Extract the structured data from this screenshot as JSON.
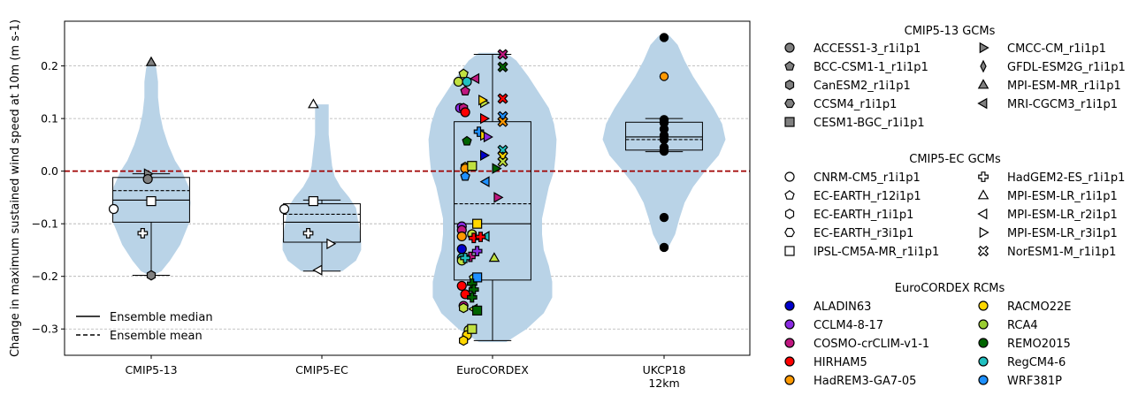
{
  "chart_data": {
    "type": "violin",
    "ylabel": "Change in maximum sustained wind speed at 10m (m s-1)",
    "ylim": [
      -0.35,
      0.285
    ],
    "yticks": [
      "0.2",
      "0.1",
      "0.0",
      "−0.1",
      "−0.2",
      "−0.3"
    ],
    "ytick_values": [
      0.2,
      0.1,
      0.0,
      -0.1,
      -0.2,
      -0.3
    ],
    "grid": "horizontal dashed",
    "reference_line": 0.0,
    "categories": [
      "CMIP5-13",
      "CMIP5-EC",
      "EuroCORDEX",
      "UKCP18 12km"
    ],
    "category_lines": [
      [
        "CMIP5-13"
      ],
      [
        "CMIP5-EC"
      ],
      [
        "EuroCORDEX"
      ],
      [
        "UKCP18",
        "12km"
      ]
    ],
    "box_stats": [
      {
        "whisker_low": -0.198,
        "q1": -0.097,
        "median": -0.055,
        "mean": -0.037,
        "q3": -0.012,
        "whisker_high": -0.005
      },
      {
        "whisker_low": -0.19,
        "q1": -0.135,
        "median": -0.097,
        "mean": -0.082,
        "q3": -0.062,
        "whisker_high": -0.055
      },
      {
        "whisker_low": -0.322,
        "q1": -0.207,
        "median": -0.1,
        "mean": -0.062,
        "q3": 0.094,
        "whisker_high": 0.222
      },
      {
        "whisker_low": 0.037,
        "q1": 0.04,
        "median": 0.065,
        "mean": 0.06,
        "q3": 0.093,
        "whisker_high": 0.1
      }
    ],
    "violins": [
      [
        [
          -0.2,
          0.0
        ],
        [
          -0.19,
          0.12
        ],
        [
          -0.17,
          0.22
        ],
        [
          -0.14,
          0.34
        ],
        [
          -0.1,
          0.44
        ],
        [
          -0.06,
          0.46
        ],
        [
          -0.03,
          0.44
        ],
        [
          0.0,
          0.36
        ],
        [
          0.02,
          0.28
        ],
        [
          0.05,
          0.2
        ],
        [
          0.08,
          0.14
        ],
        [
          0.11,
          0.1
        ],
        [
          0.14,
          0.08
        ],
        [
          0.17,
          0.08
        ],
        [
          0.195,
          0.06
        ],
        [
          0.21,
          0.03
        ]
      ],
      [
        [
          -0.19,
          0.24
        ],
        [
          -0.17,
          0.4
        ],
        [
          -0.15,
          0.46
        ],
        [
          -0.13,
          0.46
        ],
        [
          -0.11,
          0.44
        ],
        [
          -0.09,
          0.42
        ],
        [
          -0.07,
          0.4
        ],
        [
          -0.05,
          0.32
        ],
        [
          -0.03,
          0.22
        ],
        [
          -0.01,
          0.15
        ],
        [
          0.01,
          0.12
        ],
        [
          0.04,
          0.1
        ],
        [
          0.07,
          0.08
        ],
        [
          0.1,
          0.08
        ],
        [
          0.127,
          0.08
        ]
      ],
      [
        [
          -0.325,
          0.16
        ],
        [
          -0.3,
          0.4
        ],
        [
          -0.27,
          0.6
        ],
        [
          -0.24,
          0.7
        ],
        [
          -0.21,
          0.7
        ],
        [
          -0.18,
          0.66
        ],
        [
          -0.15,
          0.6
        ],
        [
          -0.12,
          0.58
        ],
        [
          -0.09,
          0.58
        ],
        [
          -0.06,
          0.62
        ],
        [
          -0.03,
          0.66
        ],
        [
          0.0,
          0.72
        ],
        [
          0.03,
          0.74
        ],
        [
          0.06,
          0.75
        ],
        [
          0.09,
          0.72
        ],
        [
          0.12,
          0.66
        ],
        [
          0.15,
          0.54
        ],
        [
          0.18,
          0.42
        ],
        [
          0.21,
          0.28
        ],
        [
          0.225,
          0.16
        ]
      ],
      [
        [
          -0.145,
          0.05
        ],
        [
          -0.12,
          0.13
        ],
        [
          -0.09,
          0.18
        ],
        [
          -0.06,
          0.24
        ],
        [
          -0.03,
          0.34
        ],
        [
          0.0,
          0.48
        ],
        [
          0.03,
          0.64
        ],
        [
          0.06,
          0.72
        ],
        [
          0.09,
          0.68
        ],
        [
          0.12,
          0.58
        ],
        [
          0.15,
          0.46
        ],
        [
          0.18,
          0.34
        ],
        [
          0.21,
          0.24
        ],
        [
          0.24,
          0.16
        ],
        [
          0.258,
          0.06
        ]
      ]
    ],
    "gcm13_points": [
      {
        "cat": 0,
        "dx": 0,
        "y": -0.198,
        "marker": "hexagon",
        "color": "#808080"
      },
      {
        "cat": 0,
        "dx": -0.02,
        "y": -0.005,
        "marker": "triangle-right",
        "color": "#808080"
      },
      {
        "cat": 0,
        "dx": -0.02,
        "y": -0.015,
        "marker": "circle",
        "color": "#808080"
      },
      {
        "cat": 0,
        "dx": 0,
        "y": 0.207,
        "marker": "triangle-up",
        "color": "#808080"
      }
    ],
    "ec_points": [
      {
        "cat": 0,
        "dx": -0.22,
        "y": -0.072,
        "marker": "circle"
      },
      {
        "cat": 0,
        "dx": 0,
        "y": -0.057,
        "marker": "square"
      },
      {
        "cat": 0,
        "dx": -0.05,
        "y": -0.118,
        "marker": "plus"
      },
      {
        "cat": 1,
        "dx": -0.22,
        "y": -0.072,
        "marker": "circle"
      },
      {
        "cat": 1,
        "dx": -0.05,
        "y": -0.057,
        "marker": "square"
      },
      {
        "cat": 1,
        "dx": -0.08,
        "y": -0.118,
        "marker": "plus"
      },
      {
        "cat": 1,
        "dx": 0.05,
        "y": -0.138,
        "marker": "triangle-right"
      },
      {
        "cat": 1,
        "dx": -0.02,
        "y": -0.188,
        "marker": "triangle-left"
      },
      {
        "cat": 1,
        "dx": -0.05,
        "y": 0.127,
        "marker": "triangle-up"
      }
    ],
    "rcm_points": [
      {
        "dx": -0.2,
        "y": 0.17,
        "marker": "circle",
        "color": "#c0e040"
      },
      {
        "dx": -0.17,
        "y": 0.185,
        "marker": "pentagon",
        "color": "#c0e040"
      },
      {
        "dx": -0.15,
        "y": 0.17,
        "marker": "circle",
        "color": "#20c0c0"
      },
      {
        "dx": -0.16,
        "y": 0.152,
        "marker": "pentagon",
        "color": "#c01880"
      },
      {
        "dx": -0.19,
        "y": 0.12,
        "marker": "circle",
        "color": "#8a2be2"
      },
      {
        "dx": -0.17,
        "y": 0.12,
        "marker": "hexagon",
        "color": "#c01880"
      },
      {
        "dx": -0.16,
        "y": 0.112,
        "marker": "circle",
        "color": "#ff0000"
      },
      {
        "dx": -0.1,
        "y": 0.176,
        "marker": "triangle-left",
        "color": "#c01880"
      },
      {
        "dx": -0.15,
        "y": 0.057,
        "marker": "pentagon",
        "color": "#006400"
      },
      {
        "dx": -0.16,
        "y": 0.008,
        "marker": "hexagon",
        "color": "#ffd700"
      },
      {
        "dx": -0.16,
        "y": 0.005,
        "marker": "circle",
        "color": "#ff9900"
      },
      {
        "dx": -0.16,
        "y": -0.01,
        "marker": "pentagon",
        "color": "#1e90ff"
      },
      {
        "dx": -0.12,
        "y": 0.01,
        "marker": "square",
        "color": "#c0e040"
      },
      {
        "dx": -0.18,
        "y": -0.105,
        "marker": "circle",
        "color": "#8a2be2"
      },
      {
        "dx": -0.18,
        "y": -0.112,
        "marker": "circle",
        "color": "#c01880"
      },
      {
        "dx": -0.18,
        "y": -0.124,
        "marker": "circle",
        "color": "#ff9900"
      },
      {
        "dx": -0.18,
        "y": -0.148,
        "marker": "circle",
        "color": "#0000cc"
      },
      {
        "dx": -0.18,
        "y": -0.165,
        "marker": "circle",
        "color": "#20c0c0"
      },
      {
        "dx": -0.18,
        "y": -0.17,
        "marker": "circle",
        "color": "#c0e040"
      },
      {
        "dx": -0.18,
        "y": -0.218,
        "marker": "circle",
        "color": "#ff0000"
      },
      {
        "dx": -0.16,
        "y": -0.234,
        "marker": "circle",
        "color": "#ff0000"
      },
      {
        "dx": -0.17,
        "y": -0.256,
        "marker": "circle",
        "color": "#c01880"
      },
      {
        "dx": -0.17,
        "y": -0.26,
        "marker": "hexagon",
        "color": "#c0e040"
      },
      {
        "dx": -0.14,
        "y": -0.302,
        "marker": "circle",
        "color": "#c0e040"
      },
      {
        "dx": -0.15,
        "y": -0.312,
        "marker": "circle",
        "color": "#ffd700"
      },
      {
        "dx": -0.17,
        "y": -0.322,
        "marker": "hexagon",
        "color": "#ffd700"
      },
      {
        "dx": -0.12,
        "y": -0.3,
        "marker": "square",
        "color": "#c0e040"
      },
      {
        "dx": -0.09,
        "y": -0.1,
        "marker": "square",
        "color": "#ffd700"
      },
      {
        "dx": -0.12,
        "y": -0.12,
        "marker": "hexagon",
        "color": "#c0e040"
      },
      {
        "dx": -0.12,
        "y": -0.12,
        "marker": "circle",
        "color": "#c0e040"
      },
      {
        "dx": -0.04,
        "y": -0.124,
        "marker": "triangle-left",
        "color": "#20c0c0"
      },
      {
        "dx": -0.11,
        "y": -0.127,
        "marker": "plus",
        "color": "#ff0000"
      },
      {
        "dx": -0.07,
        "y": -0.125,
        "marker": "plus",
        "color": "#ff0000"
      },
      {
        "dx": -0.09,
        "y": -0.152,
        "marker": "plus",
        "color": "#8a2be2"
      },
      {
        "dx": -0.13,
        "y": -0.163,
        "marker": "plus",
        "color": "#c01880"
      },
      {
        "dx": -0.16,
        "y": -0.165,
        "marker": "plus",
        "color": "#20c0c0"
      },
      {
        "dx": 0.01,
        "y": -0.165,
        "marker": "triangle-up",
        "color": "#c0e040"
      },
      {
        "dx": -0.11,
        "y": -0.203,
        "marker": "pentagon",
        "color": "#c0e040"
      },
      {
        "dx": -0.09,
        "y": -0.202,
        "marker": "square",
        "color": "#1e90ff"
      },
      {
        "dx": -0.12,
        "y": -0.214,
        "marker": "plus",
        "color": "#006400"
      },
      {
        "dx": -0.11,
        "y": -0.225,
        "marker": "plus",
        "color": "#006400"
      },
      {
        "dx": -0.12,
        "y": -0.24,
        "marker": "plus",
        "color": "#006400"
      },
      {
        "dx": -0.11,
        "y": -0.262,
        "marker": "triangle-left",
        "color": "#c0e040"
      },
      {
        "dx": -0.09,
        "y": -0.265,
        "marker": "square",
        "color": "#006400"
      },
      {
        "dx": 0.03,
        "y": -0.05,
        "marker": "triangle-right",
        "color": "#c01880"
      },
      {
        "dx": -0.08,
        "y": 0.075,
        "marker": "plus",
        "color": "#1e90ff"
      },
      {
        "dx": -0.05,
        "y": 0.068,
        "marker": "triangle-right",
        "color": "#ffd700"
      },
      {
        "dx": -0.03,
        "y": 0.065,
        "marker": "triangle-right",
        "color": "#8a2be2"
      },
      {
        "dx": -0.05,
        "y": 0.03,
        "marker": "triangle-right",
        "color": "#0000cc"
      },
      {
        "dx": 0.02,
        "y": 0.005,
        "marker": "triangle-right",
        "color": "#006400"
      },
      {
        "dx": -0.04,
        "y": -0.02,
        "marker": "triangle-left",
        "color": "#1e90ff"
      },
      {
        "dx": -0.05,
        "y": 0.1,
        "marker": "triangle-right",
        "color": "#ff0000"
      },
      {
        "dx": -0.05,
        "y": 0.13,
        "marker": "triangle-right",
        "color": "#c0e040"
      },
      {
        "dx": -0.06,
        "y": 0.135,
        "marker": "triangle-right",
        "color": "#ffd700"
      },
      {
        "dx": 0.06,
        "y": 0.222,
        "marker": "cross",
        "color": "#c01880"
      },
      {
        "dx": 0.06,
        "y": 0.198,
        "marker": "cross",
        "color": "#006400"
      },
      {
        "dx": 0.06,
        "y": 0.138,
        "marker": "cross",
        "color": "#ff0000"
      },
      {
        "dx": 0.06,
        "y": 0.104,
        "marker": "cross",
        "color": "#1e90ff"
      },
      {
        "dx": 0.06,
        "y": 0.094,
        "marker": "cross",
        "color": "#ff9900"
      },
      {
        "dx": 0.06,
        "y": 0.04,
        "marker": "cross",
        "color": "#20c0c0"
      },
      {
        "dx": 0.06,
        "y": 0.028,
        "marker": "cross",
        "color": "#ffd700"
      },
      {
        "dx": 0.06,
        "y": 0.018,
        "marker": "cross",
        "color": "#c0e040"
      }
    ],
    "ukcp_points": [
      {
        "y": 0.254,
        "color": "#000000"
      },
      {
        "y": 0.18,
        "color": "#ff9900"
      },
      {
        "y": 0.098,
        "color": "#000000"
      },
      {
        "y": 0.092,
        "color": "#000000"
      },
      {
        "y": 0.08,
        "color": "#000000"
      },
      {
        "y": 0.068,
        "color": "#000000"
      },
      {
        "y": 0.06,
        "color": "#000000"
      },
      {
        "y": 0.045,
        "color": "#000000"
      },
      {
        "y": 0.038,
        "color": "#000000"
      },
      {
        "y": -0.088,
        "color": "#000000"
      },
      {
        "y": -0.145,
        "color": "#000000"
      }
    ],
    "violin_color": "#b9d3e7"
  },
  "legend_inside": {
    "items": [
      {
        "label": "Ensemble median",
        "style": "solid"
      },
      {
        "label": "Ensemble mean",
        "style": "dashed"
      }
    ]
  },
  "legends": [
    {
      "title": "CMIP5-13 GCMs",
      "items": [
        {
          "label": "ACCESS1-3_r1i1p1",
          "marker": "circle",
          "color": "#808080"
        },
        {
          "label": "BCC-CSM1-1_r1i1p1",
          "marker": "pentagon",
          "color": "#808080"
        },
        {
          "label": "CanESM2_r1i1p1",
          "marker": "hexagon",
          "color": "#808080"
        },
        {
          "label": "CCSM4_r1i1p1",
          "marker": "hexagon2",
          "color": "#808080"
        },
        {
          "label": "CESM1-BGC_r1i1p1",
          "marker": "square",
          "color": "#808080"
        },
        {
          "label": "CMCC-CM_r1i1p1",
          "marker": "triangle-right",
          "color": "#808080"
        },
        {
          "label": "GFDL-ESM2G_r1i1p1",
          "marker": "thin-diamond",
          "color": "#808080"
        },
        {
          "label": "MPI-ESM-MR_r1i1p1",
          "marker": "triangle-up",
          "color": "#808080"
        },
        {
          "label": "MRI-CGCM3_r1i1p1",
          "marker": "triangle-left",
          "color": "#808080"
        }
      ]
    },
    {
      "title": "CMIP5-EC GCMs",
      "items": [
        {
          "label": "CNRM-CM5_r1i1p1",
          "marker": "circle",
          "color": "#ffffff"
        },
        {
          "label": "EC-EARTH_r12i1p1",
          "marker": "pentagon",
          "color": "#ffffff"
        },
        {
          "label": "EC-EARTH_r1i1p1",
          "marker": "hexagon",
          "color": "#ffffff"
        },
        {
          "label": "EC-EARTH_r3i1p1",
          "marker": "hexagon2",
          "color": "#ffffff"
        },
        {
          "label": "IPSL-CM5A-MR_r1i1p1",
          "marker": "square",
          "color": "#ffffff"
        },
        {
          "label": "HadGEM2-ES_r1i1p1",
          "marker": "plus",
          "color": "#ffffff"
        },
        {
          "label": "MPI-ESM-LR_r1i1p1",
          "marker": "triangle-up",
          "color": "#ffffff"
        },
        {
          "label": "MPI-ESM-LR_r2i1p1",
          "marker": "triangle-left",
          "color": "#ffffff"
        },
        {
          "label": "MPI-ESM-LR_r3i1p1",
          "marker": "triangle-right",
          "color": "#ffffff"
        },
        {
          "label": "NorESM1-M_r1i1p1",
          "marker": "cross",
          "color": "#ffffff"
        }
      ]
    },
    {
      "title": "EuroCORDEX RCMs",
      "items": [
        {
          "label": "ALADIN63",
          "marker": "circle",
          "color": "#0000cc"
        },
        {
          "label": "CCLM4-8-17",
          "marker": "circle",
          "color": "#8a2be2"
        },
        {
          "label": "COSMO-crCLIM-v1-1",
          "marker": "circle",
          "color": "#c01880"
        },
        {
          "label": "HIRHAM5",
          "marker": "circle",
          "color": "#ff0000"
        },
        {
          "label": "HadREM3-GA7-05",
          "marker": "circle",
          "color": "#ff9900"
        },
        {
          "label": "RACMO22E",
          "marker": "circle",
          "color": "#ffd700"
        },
        {
          "label": "RCA4",
          "marker": "circle",
          "color": "#9acd32"
        },
        {
          "label": "REMO2015",
          "marker": "circle",
          "color": "#006400"
        },
        {
          "label": "RegCM4-6",
          "marker": "circle",
          "color": "#20c0c0"
        },
        {
          "label": "WRF381P",
          "marker": "circle",
          "color": "#1e90ff"
        }
      ]
    }
  ]
}
